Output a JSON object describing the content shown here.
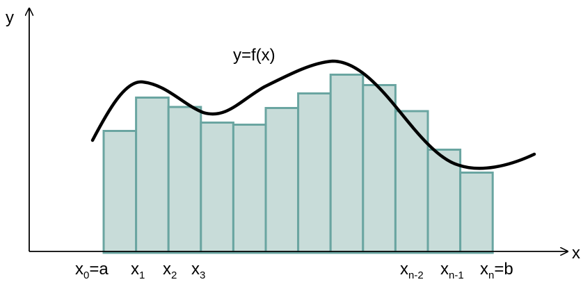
{
  "colors": {
    "bar_fill": "#c8dcd9",
    "bar_stroke": "#6aa5a1",
    "curve": "#000000",
    "axis": "#000000"
  },
  "axes": {
    "x_label": "x",
    "y_label": "y"
  },
  "curve_label": "y=f(x)",
  "rectangles": {
    "heights": [
      0.585,
      0.745,
      0.7,
      0.625,
      0.615,
      0.695,
      0.765,
      0.855,
      0.805,
      0.68,
      0.495,
      0.385
    ]
  },
  "x_labels": {
    "x0": {
      "base": "x",
      "sub": "0",
      "suffix": "=a"
    },
    "x1": {
      "base": "x",
      "sub": "1"
    },
    "x2": {
      "base": "x",
      "sub": "2"
    },
    "x3": {
      "base": "x",
      "sub": "3"
    },
    "xn2": {
      "base": "x",
      "sub": "n-2"
    },
    "xn1": {
      "base": "x",
      "sub": "n-1"
    },
    "xn": {
      "base": "x",
      "sub": "n",
      "suffix": "=b"
    }
  }
}
